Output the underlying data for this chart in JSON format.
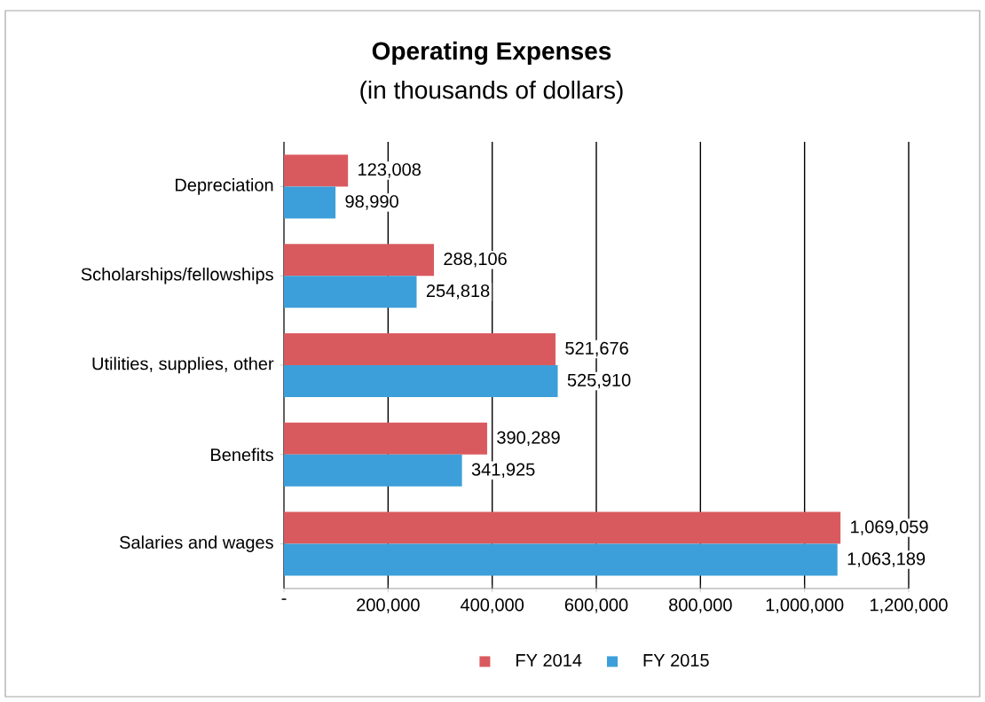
{
  "chart_data": {
    "type": "bar",
    "orientation": "horizontal",
    "title": "Operating Expenses",
    "subtitle": "(in thousands of dollars)",
    "categories": [
      "Depreciation",
      "Scholarships/fellowships",
      "Utilities, supplies, other",
      "Benefits",
      "Salaries and wages"
    ],
    "series": [
      {
        "name": "FY 2014",
        "color": "#d95a5e",
        "values": [
          123008,
          288106,
          521676,
          390289,
          1069059
        ],
        "value_labels": [
          "123,008",
          "288,106",
          "521,676",
          "390,289",
          "1,069,059"
        ]
      },
      {
        "name": "FY 2015",
        "color": "#3d9fd9",
        "values": [
          98990,
          254818,
          525910,
          341925,
          1063189
        ],
        "value_labels": [
          "98,990",
          "254,818",
          "525,910",
          "341,925",
          "1,063,189"
        ]
      }
    ],
    "xlim": [
      0,
      1200000
    ],
    "xticks": [
      {
        "value": 0,
        "label": "-"
      },
      {
        "value": 200000,
        "label": "200,000"
      },
      {
        "value": 400000,
        "label": "400,000"
      },
      {
        "value": 600000,
        "label": "600,000"
      },
      {
        "value": 800000,
        "label": "800,000"
      },
      {
        "value": 1000000,
        "label": "1,000,000"
      },
      {
        "value": 1200000,
        "label": "1,200,000"
      }
    ],
    "grid": "x",
    "legend": "bottom"
  }
}
